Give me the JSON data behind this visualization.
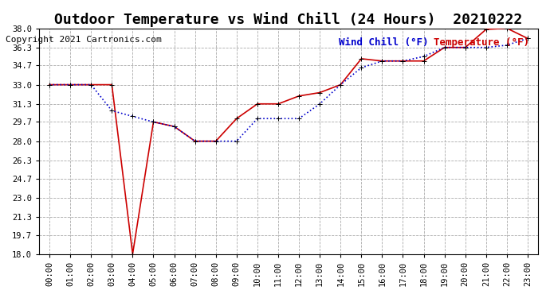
{
  "title": "Outdoor Temperature vs Wind Chill (24 Hours)  20210222",
  "copyright": "Copyright 2021 Cartronics.com",
  "legend_wind_chill": "Wind Chill (°F)",
  "legend_temperature": "Temperature (°F)",
  "hours": [
    "00:00",
    "01:00",
    "02:00",
    "03:00",
    "04:00",
    "05:00",
    "06:00",
    "07:00",
    "08:00",
    "09:00",
    "10:00",
    "11:00",
    "12:00",
    "13:00",
    "14:00",
    "15:00",
    "16:00",
    "17:00",
    "18:00",
    "19:00",
    "20:00",
    "21:00",
    "22:00",
    "23:00"
  ],
  "temperature": [
    33.0,
    33.0,
    33.0,
    33.0,
    18.0,
    29.7,
    29.3,
    28.0,
    28.0,
    30.0,
    31.3,
    31.3,
    32.0,
    32.3,
    33.0,
    35.3,
    35.1,
    35.1,
    35.1,
    36.3,
    36.3,
    37.9,
    38.0,
    37.1
  ],
  "wind_chill": [
    33.0,
    33.0,
    33.0,
    30.7,
    30.2,
    29.7,
    29.3,
    28.0,
    28.0,
    28.0,
    30.0,
    30.0,
    30.0,
    31.3,
    33.0,
    34.5,
    35.1,
    35.1,
    35.5,
    36.3,
    36.3,
    36.3,
    36.5,
    37.1
  ],
  "wind_chill_color": "#0000cc",
  "temperature_color": "#cc0000",
  "background_color": "#ffffff",
  "grid_color": "#aaaaaa",
  "ylim": [
    18.0,
    38.0
  ],
  "yticks": [
    18.0,
    19.7,
    21.3,
    23.0,
    24.7,
    26.3,
    28.0,
    29.7,
    31.3,
    33.0,
    34.7,
    36.3,
    38.0
  ],
  "title_fontsize": 13,
  "copyright_fontsize": 8,
  "legend_fontsize": 9,
  "marker": "+",
  "marker_size": 5,
  "line_width": 1.2
}
